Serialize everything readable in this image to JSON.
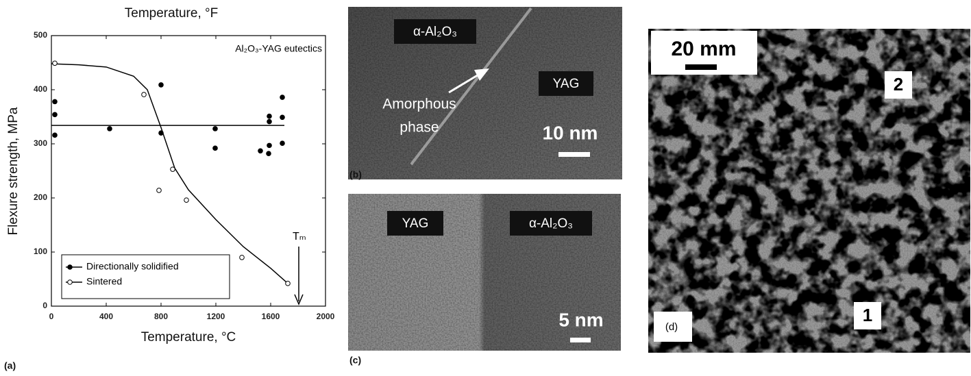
{
  "chart_data": {
    "type": "scatter",
    "title": "Temperature, °F",
    "xlabel": "Temperature, °C",
    "ylabel": "Flexure strength, MPa",
    "panel_label": "(a)",
    "annotation": "Al₂O₃-YAG eutectics",
    "marker_annotation": "Tₘ",
    "xlim": [
      0,
      2000
    ],
    "xticks": [
      0,
      400,
      800,
      1200,
      1600,
      2000
    ],
    "ylim": [
      0,
      500
    ],
    "yticks": [
      0,
      100,
      200,
      300,
      400,
      500
    ],
    "grid": false,
    "legend": "lower left",
    "series": [
      {
        "name": "Directionally solidified",
        "color": "#000000",
        "marker": "filled",
        "x": [
          25,
          25,
          25,
          425,
          800,
          800,
          1195,
          1195,
          1525,
          1585,
          1590,
          1590,
          1590,
          1685,
          1685,
          1685
        ],
        "values": [
          378,
          354,
          316,
          328,
          409,
          320,
          328,
          292,
          287,
          282,
          351,
          341,
          297,
          386,
          349,
          301
        ]
      },
      {
        "name": "Sintered",
        "color": "#000000",
        "marker": "open",
        "x": [
          25,
          675,
          785,
          885,
          985,
          1390,
          1725
        ],
        "values": [
          449,
          391,
          214,
          253,
          196,
          90,
          42
        ]
      }
    ],
    "lines": [
      {
        "color": "#000000",
        "x": [
          0,
          1700
        ],
        "values": [
          334,
          334
        ]
      },
      {
        "color": "#000000",
        "x": [
          0,
          200,
          400,
          600,
          700,
          800,
          900,
          1000,
          1200,
          1400,
          1600,
          1725
        ],
        "values": [
          448,
          446,
          442,
          425,
          400,
          330,
          255,
          215,
          160,
          110,
          70,
          42
        ]
      }
    ]
  },
  "panels": {
    "b": {
      "label": "(b)",
      "phase_left": "α-Al₂O₃",
      "phase_right": "YAG",
      "note_lines": [
        "Amorphous",
        "phase"
      ],
      "scale": "10 nm"
    },
    "c": {
      "label": "(c)",
      "phase_left": "YAG",
      "phase_right": "α-Al₂O₃",
      "scale": "5 nm"
    },
    "d": {
      "label": "(d)",
      "scale": "20 mm",
      "region_1": "1",
      "region_2": "2"
    }
  }
}
